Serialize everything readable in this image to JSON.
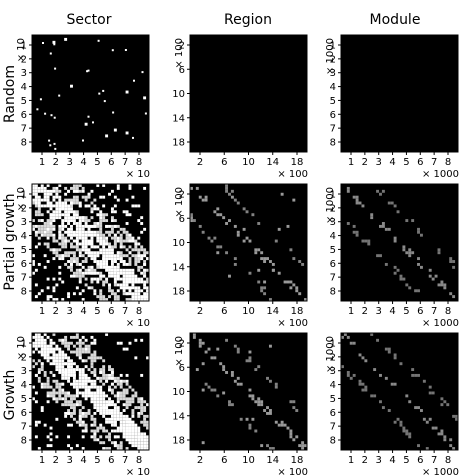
{
  "figure": {
    "columns": [
      "Sector",
      "Region",
      "Module"
    ],
    "rows": [
      "Random",
      "Partial growth",
      "Growth"
    ],
    "multipliers": {
      "sector": "× 10",
      "region": "× 100",
      "module": "× 1000"
    }
  },
  "chart_data": [
    {
      "type": "heatmap",
      "row": "Random",
      "column": "Sector",
      "x_ticks": [
        "1",
        "2",
        "3",
        "4",
        "5",
        "6",
        "7",
        "8"
      ],
      "y_ticks": [
        "1",
        "2",
        "3",
        "4",
        "5",
        "6",
        "7",
        "8"
      ],
      "x_multiplier": "× 10",
      "y_multiplier": "× 10",
      "size": 80,
      "density": 0.006,
      "diagonal_band": 0,
      "diagonal_width": 0,
      "pattern": "sparse random",
      "colors": {
        "background": "#000000",
        "mark": "#ffffff"
      }
    },
    {
      "type": "heatmap",
      "row": "Random",
      "column": "Region",
      "x_ticks": [
        "2",
        "6",
        "10",
        "14",
        "18"
      ],
      "y_ticks": [
        "2",
        "6",
        "10",
        "14",
        "18"
      ],
      "x_multiplier": "× 100",
      "y_multiplier": "× 100",
      "size": 1900,
      "density": 0.0,
      "diagonal_band": 0,
      "diagonal_width": 0,
      "pattern": "near empty",
      "colors": {
        "background": "#000000",
        "mark": "#ffffff"
      }
    },
    {
      "type": "heatmap",
      "row": "Random",
      "column": "Module",
      "x_ticks": [
        "1",
        "2",
        "3",
        "4",
        "5",
        "6",
        "7",
        "8"
      ],
      "y_ticks": [
        "1",
        "2",
        "3",
        "4",
        "5",
        "6",
        "7",
        "8"
      ],
      "x_multiplier": "× 1000",
      "y_multiplier": "× 1000",
      "size": 8000,
      "density": 0.0,
      "diagonal_band": 0,
      "diagonal_width": 0,
      "pattern": "near empty",
      "colors": {
        "background": "#000000",
        "mark": "#ffffff"
      }
    },
    {
      "type": "heatmap",
      "row": "Partial growth",
      "column": "Sector",
      "x_ticks": [
        "1",
        "2",
        "3",
        "4",
        "5",
        "6",
        "7",
        "8"
      ],
      "y_ticks": [
        "1",
        "2",
        "3",
        "4",
        "5",
        "6",
        "7",
        "8"
      ],
      "x_multiplier": "× 10",
      "y_multiplier": "× 10",
      "size": 80,
      "density": 0.14,
      "diagonal_band": 0.75,
      "diagonal_width": 0.12,
      "pattern": "dense with diagonal bands",
      "colors": {
        "background": "#000000",
        "mark": "#ffffff"
      }
    },
    {
      "type": "heatmap",
      "row": "Partial growth",
      "column": "Region",
      "x_ticks": [
        "2",
        "6",
        "10",
        "14",
        "18"
      ],
      "y_ticks": [
        "2",
        "6",
        "10",
        "14",
        "18"
      ],
      "x_multiplier": "× 100",
      "y_multiplier": "× 100",
      "size": 1900,
      "density": 0.01,
      "diagonal_band": 0.35,
      "diagonal_width": 0.03,
      "pattern": "faint diagonal",
      "colors": {
        "background": "#000000",
        "mark": "#9a9a9a"
      }
    },
    {
      "type": "heatmap",
      "row": "Partial growth",
      "column": "Module",
      "x_ticks": [
        "1",
        "2",
        "3",
        "4",
        "5",
        "6",
        "7",
        "8"
      ],
      "y_ticks": [
        "1",
        "2",
        "3",
        "4",
        "5",
        "6",
        "7",
        "8"
      ],
      "x_multiplier": "× 1000",
      "y_multiplier": "× 1000",
      "size": 8000,
      "density": 0.0,
      "diagonal_band": 0.35,
      "diagonal_width": 0.012,
      "pattern": "thin diagonal",
      "colors": {
        "background": "#000000",
        "mark": "#8a8a8a"
      }
    },
    {
      "type": "heatmap",
      "row": "Growth",
      "column": "Sector",
      "x_ticks": [
        "1",
        "2",
        "3",
        "4",
        "5",
        "6",
        "7",
        "8"
      ],
      "y_ticks": [
        "1",
        "2",
        "3",
        "4",
        "5",
        "6",
        "7",
        "8"
      ],
      "x_multiplier": "× 10",
      "y_multiplier": "× 10",
      "size": 80,
      "density": 0.1,
      "diagonal_band": 0.85,
      "diagonal_width": 0.1,
      "pattern": "dense with diagonal bands",
      "colors": {
        "background": "#000000",
        "mark": "#ffffff"
      }
    },
    {
      "type": "heatmap",
      "row": "Growth",
      "column": "Region",
      "x_ticks": [
        "2",
        "6",
        "10",
        "14",
        "18"
      ],
      "y_ticks": [
        "2",
        "6",
        "10",
        "14",
        "18"
      ],
      "x_multiplier": "× 100",
      "y_multiplier": "× 100",
      "size": 1900,
      "density": 0.008,
      "diagonal_band": 0.35,
      "diagonal_width": 0.03,
      "pattern": "faint diagonal",
      "colors": {
        "background": "#000000",
        "mark": "#9a9a9a"
      }
    },
    {
      "type": "heatmap",
      "row": "Growth",
      "column": "Module",
      "x_ticks": [
        "1",
        "2",
        "3",
        "4",
        "5",
        "6",
        "7",
        "8"
      ],
      "y_ticks": [
        "1",
        "2",
        "3",
        "4",
        "5",
        "6",
        "7",
        "8"
      ],
      "x_multiplier": "× 1000",
      "y_multiplier": "× 1000",
      "size": 8000,
      "density": 0.0,
      "diagonal_band": 0.3,
      "diagonal_width": 0.012,
      "pattern": "thin diagonal",
      "colors": {
        "background": "#000000",
        "mark": "#8a8a8a"
      }
    }
  ]
}
